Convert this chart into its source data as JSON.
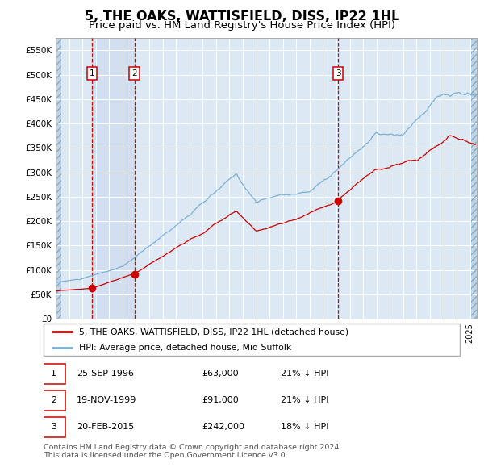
{
  "title": "5, THE OAKS, WATTISFIELD, DISS, IP22 1HL",
  "subtitle": "Price paid vs. HM Land Registry's House Price Index (HPI)",
  "title_fontsize": 11.5,
  "subtitle_fontsize": 9.5,
  "background_color": "#ffffff",
  "plot_bg_color": "#dce9f5",
  "grid_color": "#ffffff",
  "red_line_color": "#cc0000",
  "blue_line_color": "#7bafd4",
  "sale_marker_color": "#cc0000",
  "vline_color": "#cc0000",
  "ylim": [
    0,
    575000
  ],
  "yticks": [
    0,
    50000,
    100000,
    150000,
    200000,
    250000,
    300000,
    350000,
    400000,
    450000,
    500000,
    550000
  ],
  "ytick_labels": [
    "£0",
    "£50K",
    "£100K",
    "£150K",
    "£200K",
    "£250K",
    "£300K",
    "£350K",
    "£400K",
    "£450K",
    "£500K",
    "£550K"
  ],
  "xmin": 1994.0,
  "xmax": 2025.5,
  "sales": [
    {
      "date_num": 1996.73,
      "price": 63000,
      "label": "1"
    },
    {
      "date_num": 1999.89,
      "price": 91000,
      "label": "2"
    },
    {
      "date_num": 2015.13,
      "price": 242000,
      "label": "3"
    }
  ],
  "legend_label_red": "5, THE OAKS, WATTISFIELD, DISS, IP22 1HL (detached house)",
  "legend_label_blue": "HPI: Average price, detached house, Mid Suffolk",
  "table_rows": [
    {
      "num": "1",
      "date": "25-SEP-1996",
      "price": "£63,000",
      "pct": "21% ↓ HPI"
    },
    {
      "num": "2",
      "date": "19-NOV-1999",
      "price": "£91,000",
      "pct": "21% ↓ HPI"
    },
    {
      "num": "3",
      "date": "20-FEB-2015",
      "price": "£242,000",
      "pct": "18% ↓ HPI"
    }
  ],
  "footnote": "Contains HM Land Registry data © Crown copyright and database right 2024.\nThis data is licensed under the Open Government Licence v3.0.",
  "shade_x0": 1996.73,
  "shade_x1": 1999.89
}
